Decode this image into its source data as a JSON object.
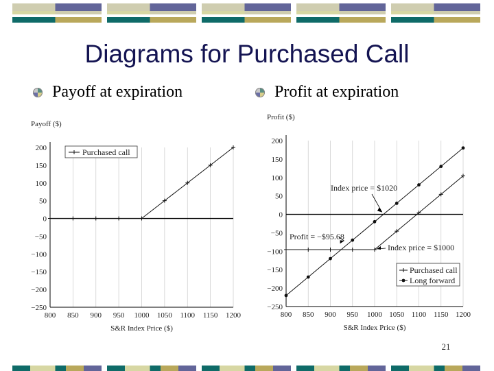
{
  "slide": {
    "title": "Diagrams for Purchased Call",
    "bullet_left": "Payoff at expiration",
    "bullet_right": "Profit at expiration",
    "page_number": "21",
    "band_colors": [
      "#0f6b68",
      "#d7d7a3",
      "#626599",
      "#b9a85b",
      "#cfcdb0"
    ]
  },
  "chart_data": [
    {
      "type": "line",
      "ylabel": "Payoff ($)",
      "xlabel": "S&R Index Price ($)",
      "x_ticks": [
        800,
        850,
        900,
        950,
        1000,
        1050,
        1100,
        1150,
        1200
      ],
      "y_ticks": [
        "200",
        "150",
        "100",
        "50",
        "0",
        "−50",
        "−100",
        "−150",
        "−200",
        "−250"
      ],
      "xlim": [
        800,
        1200
      ],
      "ylim": [
        -250,
        200
      ],
      "legend": [
        "Purchased call"
      ],
      "legend_placement": "top-left",
      "series": [
        {
          "name": "Purchased call",
          "x": [
            800,
            850,
            900,
            950,
            1000,
            1050,
            1100,
            1150,
            1200
          ],
          "y": [
            0,
            0,
            0,
            0,
            0,
            50,
            100,
            150,
            200
          ]
        }
      ]
    },
    {
      "type": "line",
      "ylabel": "Profit ($)",
      "xlabel": "S&R Index Price ($)",
      "x_ticks": [
        800,
        850,
        900,
        950,
        1000,
        1050,
        1100,
        1150,
        1200
      ],
      "y_ticks": [
        "200",
        "150",
        "100",
        "50",
        "0",
        "−50",
        "−100",
        "−150",
        "−200",
        "−250"
      ],
      "xlim": [
        800,
        1200
      ],
      "ylim": [
        -250,
        200
      ],
      "legend": [
        "Purchased call",
        "Long forward"
      ],
      "legend_placement": "bottom-right",
      "annotations": [
        "Index price = $1020",
        "Profit = −$95.68",
        "Index price = $1000"
      ],
      "series": [
        {
          "name": "Purchased call",
          "x": [
            800,
            850,
            900,
            950,
            1000,
            1050,
            1100,
            1150,
            1200
          ],
          "y": [
            -95.68,
            -95.68,
            -95.68,
            -95.68,
            -95.68,
            -45.68,
            4.32,
            54.32,
            104.32
          ]
        },
        {
          "name": "Long forward",
          "x": [
            800,
            850,
            900,
            950,
            1000,
            1050,
            1100,
            1150,
            1200
          ],
          "y": [
            -220,
            -170,
            -120,
            -70,
            -20,
            30,
            80,
            130,
            180
          ]
        }
      ]
    }
  ]
}
